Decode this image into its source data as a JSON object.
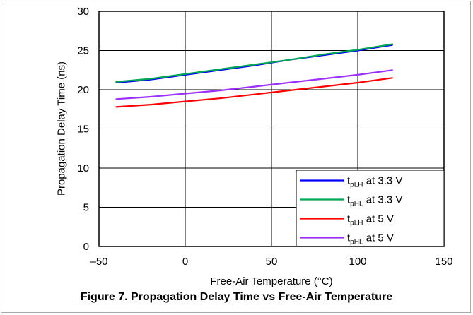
{
  "chart_data": {
    "type": "line",
    "title": "",
    "xlabel": "Free-Air Temperature (°C)",
    "ylabel": "Propagation Delay Time (ns)",
    "xlim": [
      -50,
      150
    ],
    "ylim": [
      0,
      30
    ],
    "xticks": [
      -50,
      0,
      50,
      100,
      150
    ],
    "xtick_labels": [
      "–50",
      "0",
      "50",
      "100",
      "150"
    ],
    "yticks": [
      0,
      5,
      10,
      15,
      20,
      25,
      30
    ],
    "ytick_labels": [
      "0",
      "5",
      "10",
      "15",
      "20",
      "25",
      "30"
    ],
    "grid": true,
    "legend_position": "bottom-right",
    "series": [
      {
        "name": "tpLH at 3.3 V",
        "legend_main": "t",
        "legend_sub": "pLH",
        "legend_suffix": " at 3.3 V",
        "color": "#0000ff",
        "x": [
          -40,
          -20,
          0,
          20,
          40,
          60,
          80,
          100,
          120
        ],
        "y": [
          20.9,
          21.3,
          21.9,
          22.5,
          23.1,
          23.8,
          24.4,
          25.0,
          25.7
        ]
      },
      {
        "name": "tpHL at 3.3 V",
        "legend_main": "t",
        "legend_sub": "pHL",
        "legend_suffix": " at 3.3 V",
        "color": "#00a651",
        "x": [
          -40,
          -20,
          0,
          20,
          40,
          60,
          80,
          100,
          120
        ],
        "y": [
          21.0,
          21.4,
          22.0,
          22.6,
          23.2,
          23.8,
          24.5,
          25.1,
          25.8
        ]
      },
      {
        "name": "tpLH at 5 V",
        "legend_main": "t",
        "legend_sub": "pLH",
        "legend_suffix": " at 5 V",
        "color": "#ff0000",
        "x": [
          -40,
          -20,
          0,
          20,
          40,
          60,
          80,
          100,
          120
        ],
        "y": [
          17.8,
          18.1,
          18.5,
          18.9,
          19.4,
          19.9,
          20.4,
          20.9,
          21.5
        ]
      },
      {
        "name": "tpHL at 5 V",
        "legend_main": "t",
        "legend_sub": "pHL",
        "legend_suffix": " at 5 V",
        "color": "#9b30ff",
        "x": [
          -40,
          -20,
          0,
          20,
          40,
          60,
          80,
          100,
          120
        ],
        "y": [
          18.8,
          19.1,
          19.5,
          19.9,
          20.4,
          20.9,
          21.4,
          21.9,
          22.5
        ]
      }
    ]
  },
  "caption": "Figure 7. Propagation Delay Time vs Free-Air Temperature"
}
